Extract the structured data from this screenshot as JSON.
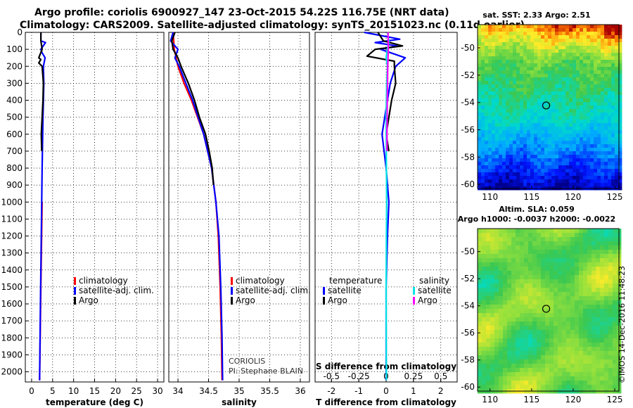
{
  "header": {
    "line1": "Argo profile: coriolis 6900927_147 23-Oct-2015 54.22S 116.75E (NRT data)",
    "line2": "Climatology: CARS2009. Satellite-adjusted climatology: synTS_20151023.nc (0.11d earlier)"
  },
  "colors": {
    "climatology": "#ff0000",
    "satellite": "#0000ff",
    "argo": "#000000",
    "salinity_satellite": "#00e5e5",
    "salinity_argo": "#ff00ff"
  },
  "depth_ticks": [
    0,
    100,
    200,
    300,
    400,
    500,
    600,
    700,
    800,
    900,
    1000,
    1100,
    1200,
    1300,
    1400,
    1500,
    1600,
    1700,
    1800,
    1900,
    2000
  ],
  "chart_data": [
    {
      "type": "line",
      "name": "temperature",
      "xlabel": "temperature (deg C)",
      "ylabel": "depth",
      "xlim": [
        -1.5,
        31.5
      ],
      "ylim": [
        2060,
        0
      ],
      "xticks": [
        0,
        5,
        10,
        15,
        20,
        25,
        30
      ],
      "xtick_labels": [
        "0",
        "5",
        "10",
        "15",
        "20",
        "25",
        "30"
      ],
      "legend": [
        "climatology",
        "satellite-adj. clim.",
        "Argo"
      ],
      "series": [
        {
          "name": "climatology",
          "color": "#ff0000",
          "depth": [
            1000,
            1500,
            2050
          ],
          "values": [
            2.5,
            2.2,
            1.9
          ]
        },
        {
          "name": "satellite-adj. clim.",
          "color": "#0000ff",
          "depth": [
            0,
            50,
            60,
            100,
            120,
            150,
            200,
            300,
            500,
            800,
            1200,
            1600,
            2050
          ],
          "values": [
            2.2,
            2.2,
            3.3,
            2.2,
            2.5,
            3.2,
            2.8,
            2.9,
            2.7,
            2.5,
            2.3,
            2.1,
            1.9
          ]
        },
        {
          "name": "Argo",
          "color": "#000000",
          "depth": [
            0,
            50,
            100,
            150,
            160,
            180,
            200,
            300,
            400,
            600,
            700
          ],
          "values": [
            2.2,
            2.2,
            2.5,
            1.7,
            2.2,
            1.7,
            2.5,
            2.8,
            2.7,
            2.3,
            2.4
          ]
        }
      ]
    },
    {
      "type": "line",
      "name": "salinity",
      "xlabel": "salinity",
      "ylabel": "depth",
      "xlim": [
        33.85,
        36.15
      ],
      "ylim": [
        2060,
        0
      ],
      "xticks": [
        34,
        34.5,
        35,
        35.5,
        36
      ],
      "xtick_labels": [
        "34",
        "34.5",
        "35",
        "35.5",
        "36"
      ],
      "legend": [
        "climatology",
        "satellite-adj. clim.",
        "Argo"
      ],
      "annotation": [
        "CORIOLIS",
        "PI: Stephane BLAIN"
      ],
      "series": [
        {
          "name": "climatology",
          "color": "#ff0000",
          "depth": [
            0,
            100,
            200,
            300,
            400,
            500,
            600,
            800,
            1000,
            1200,
            1500,
            1800,
            2050
          ],
          "values": [
            33.92,
            33.94,
            34.0,
            34.1,
            34.22,
            34.32,
            34.42,
            34.55,
            34.62,
            34.66,
            34.69,
            34.71,
            34.72
          ]
        },
        {
          "name": "satellite-adj. clim.",
          "color": "#0000ff",
          "depth": [
            0,
            50,
            100,
            150,
            200,
            300,
            400,
            500,
            600,
            800,
            1000,
            1200,
            1500,
            1800,
            2050
          ],
          "values": [
            33.92,
            33.88,
            34.0,
            33.95,
            34.02,
            34.13,
            34.24,
            34.33,
            34.42,
            34.55,
            34.62,
            34.67,
            34.7,
            34.72,
            34.73
          ]
        },
        {
          "name": "Argo",
          "color": "#000000",
          "depth": [
            0,
            50,
            100,
            150,
            200,
            300,
            400,
            500,
            600,
            700,
            800,
            900
          ],
          "values": [
            33.95,
            33.9,
            33.92,
            34.0,
            34.05,
            34.17,
            34.27,
            34.35,
            34.45,
            34.51,
            34.56,
            34.58
          ]
        }
      ]
    },
    {
      "type": "line",
      "name": "difference",
      "xlabel": "T difference from climatology",
      "xlabel_top": "S difference from climatology",
      "ylabel": "depth",
      "xlim": [
        -2.6,
        2.6
      ],
      "ylim": [
        2060,
        0
      ],
      "xticks": [
        -2,
        -1,
        0,
        1,
        2
      ],
      "xtick_labels": [
        "-2",
        "-1",
        "0",
        "1",
        "2"
      ],
      "xticks_top": [
        -0.5,
        -0.25,
        0,
        0.25,
        0.5
      ],
      "xtick_labels_top": [
        "-0.5",
        "-0.25",
        "0",
        "0.25",
        "0.5"
      ],
      "legend_left_title": "temperature",
      "legend_right_title": "salinity",
      "legend": [
        "satellite",
        "Argo",
        "satellite",
        "Argo"
      ],
      "series": [
        {
          "name": "temperature satellite",
          "color": "#0000ff",
          "depth": [
            0,
            40,
            60,
            80,
            100,
            150,
            200,
            300,
            400,
            600,
            800,
            1000,
            1200,
            1500,
            2050
          ],
          "values": [
            -0.8,
            0.5,
            -0.4,
            0.4,
            -0.2,
            0.7,
            0.35,
            0.15,
            0.05,
            -0.15,
            0.0,
            0.1,
            0.05,
            0.0,
            0.0
          ]
        },
        {
          "name": "temperature Argo",
          "color": "#000000",
          "depth": [
            0,
            50,
            80,
            100,
            140,
            170,
            200,
            300,
            400,
            600,
            700
          ],
          "values": [
            -0.3,
            -0.1,
            0.6,
            -0.4,
            -0.7,
            0.3,
            0.3,
            0.35,
            0.2,
            0.0,
            0.1
          ]
        },
        {
          "name": "salinity satellite",
          "color": "#00e5e5",
          "depth": [
            0,
            50,
            100,
            150,
            200,
            300,
            500,
            800,
            1000,
            1200,
            1500,
            2050
          ],
          "values": [
            0.05,
            0.1,
            0.05,
            0.0,
            0.05,
            0.02,
            0.0,
            0.01,
            0.02,
            0.01,
            0.0,
            0.01
          ]
        },
        {
          "name": "salinity Argo",
          "color": "#ff00ff",
          "depth": [
            0,
            100,
            200,
            400,
            600,
            700
          ],
          "values": [
            0.07,
            0.08,
            0.06,
            0.04,
            0.03,
            0.03
          ]
        }
      ]
    },
    {
      "type": "heatmap",
      "name": "sst_map",
      "title": "sat. SST: 2.33 Argo: 2.51",
      "xlim": [
        108.5,
        125.5
      ],
      "ylim": [
        -60.3,
        -48.3
      ],
      "xticks": [
        110,
        115,
        120,
        125
      ],
      "xtick_labels": [
        "110",
        "115",
        "120",
        "125"
      ],
      "yticks": [
        -60,
        -58,
        -56,
        -54,
        -52,
        -50
      ],
      "ytick_labels": [
        "-60",
        "-58",
        "-56",
        "-54",
        "-52",
        "-50"
      ],
      "marker": {
        "lon": 116.75,
        "lat": -54.22
      }
    },
    {
      "type": "heatmap",
      "name": "sla_map",
      "title": "Altim. SLA: 0.059",
      "subtitle": "Argo h1000: -0.0037 h2000: -0.0022",
      "xlim": [
        108.5,
        125.5
      ],
      "ylim": [
        -60.3,
        -48.3
      ],
      "xticks": [
        110,
        115,
        120,
        125
      ],
      "xtick_labels": [
        "110",
        "115",
        "120",
        "125"
      ],
      "yticks": [
        -60,
        -58,
        -56,
        -54,
        -52,
        -50
      ],
      "ytick_labels": [
        "-60",
        "-58",
        "-56",
        "-54",
        "-52",
        "-50"
      ],
      "marker": {
        "lon": 116.75,
        "lat": -54.22
      }
    }
  ],
  "footer": {
    "watermark": "©IMOS 14-Dec-2016 11:48:23"
  }
}
